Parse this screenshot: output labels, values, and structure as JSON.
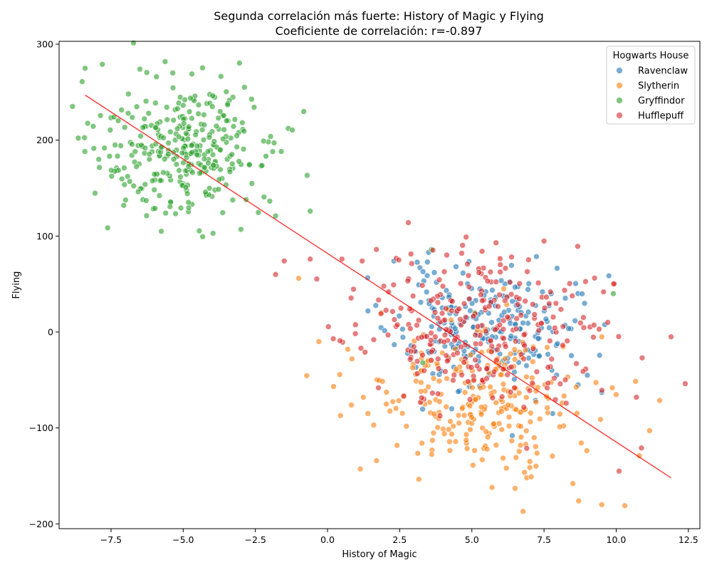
{
  "chart_data": {
    "type": "scatter",
    "title": "Segunda correlación más fuerte: History of Magic y Flying",
    "subtitle": "Coeficiente de correlación: r=-0.897",
    "xlabel": "History of Magic",
    "ylabel": "Flying",
    "xlim": [
      -9.3,
      12.9
    ],
    "ylim": [
      -205,
      303
    ],
    "xticks": [
      -7.5,
      -5.0,
      -2.5,
      0.0,
      2.5,
      5.0,
      7.5,
      10.0,
      12.5
    ],
    "xtick_labels": [
      "−7.5",
      "−5.0",
      "−2.5",
      "0.0",
      "2.5",
      "5.0",
      "7.5",
      "10.0",
      "12.5"
    ],
    "yticks": [
      -200,
      -100,
      0,
      100,
      200,
      300
    ],
    "ytick_labels": [
      "−200",
      "−100",
      "0",
      "100",
      "200",
      "300"
    ],
    "grid": false,
    "legend": {
      "title": "Hogwarts House",
      "placement": "top-right"
    },
    "series": [
      {
        "name": "Ravenclaw",
        "color": "#1f77b4",
        "cluster": {
          "n": 220,
          "x_mean": 5.4,
          "x_sd": 1.5,
          "y_mean": 5,
          "y_sd": 30,
          "seed": 11
        },
        "points": [
          [
            3.5,
            83
          ],
          [
            3.2,
            67
          ],
          [
            2.3,
            74
          ],
          [
            3.7,
            62
          ],
          [
            6.3,
            52
          ],
          [
            9.0,
            -45
          ],
          [
            9.5,
            -63
          ],
          [
            7.8,
            -85
          ],
          [
            1.4,
            22
          ],
          [
            2.6,
            3
          ],
          [
            6.4,
            -108
          ],
          [
            4.3,
            -80
          ]
        ]
      },
      {
        "name": "Slytherin",
        "color": "#ff7f0e",
        "cluster": {
          "n": 260,
          "x_mean": 5.2,
          "x_sd": 1.9,
          "y_mean": -70,
          "y_sd": 35,
          "seed": 22
        },
        "points": [
          [
            -1.0,
            56
          ],
          [
            -0.3,
            -10
          ],
          [
            0.7,
            -18
          ],
          [
            1.6,
            -97
          ],
          [
            1.4,
            -85
          ],
          [
            5.7,
            -162
          ],
          [
            6.5,
            -163
          ],
          [
            8.7,
            -176
          ],
          [
            9.5,
            -180
          ],
          [
            10.3,
            -181
          ],
          [
            10.8,
            -129
          ],
          [
            8.5,
            -158
          ],
          [
            6.9,
            -152
          ],
          [
            9.5,
            -5
          ]
        ]
      },
      {
        "name": "Gryffindor",
        "color": "#2ca02c",
        "cluster": {
          "n": 330,
          "x_mean": -5.0,
          "x_sd": 1.5,
          "y_mean": 190,
          "y_sd": 35,
          "seed": 33
        },
        "points": [
          [
            -8.4,
            275
          ],
          [
            -7.8,
            279
          ],
          [
            -6.5,
            274
          ],
          [
            -8.5,
            261
          ],
          [
            -6.4,
            138
          ],
          [
            -3.0,
            107
          ],
          [
            -0.6,
            126
          ],
          [
            -1.8,
            121
          ],
          [
            -1.9,
            188
          ],
          [
            3.6,
            86
          ],
          [
            9.9,
            40
          ],
          [
            5.1,
            20
          ],
          [
            3.3,
            -32
          ]
        ]
      },
      {
        "name": "Hufflepuff",
        "color": "#d62728",
        "cluster": {
          "n": 290,
          "x_mean": 5.2,
          "x_sd": 2.2,
          "y_mean": 0,
          "y_sd": 38,
          "seed": 44
        },
        "points": [
          [
            2.8,
            114
          ],
          [
            4.8,
            99
          ],
          [
            -1.8,
            60
          ],
          [
            -1.5,
            74
          ],
          [
            -0.6,
            76
          ],
          [
            0.5,
            76
          ],
          [
            1.2,
            74
          ],
          [
            11.9,
            -5
          ],
          [
            10.1,
            -145
          ],
          [
            10.7,
            -68
          ],
          [
            10.9,
            -27
          ],
          [
            9.9,
            50
          ],
          [
            0.2,
            -7
          ],
          [
            1.3,
            -21
          ],
          [
            1.6,
            -8
          ]
        ]
      }
    ],
    "regression_line": {
      "color": "#ff0000",
      "points": [
        [
          -8.4,
          247
        ],
        [
          11.9,
          -152
        ]
      ]
    }
  }
}
